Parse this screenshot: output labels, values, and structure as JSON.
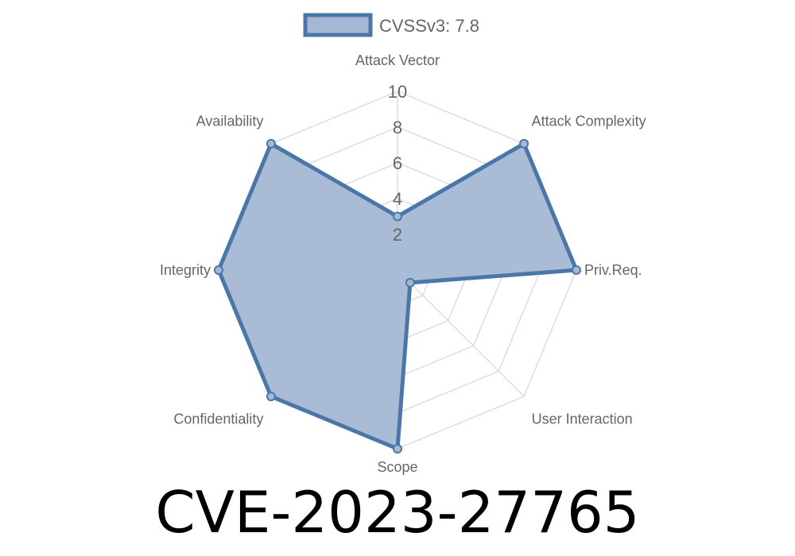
{
  "chart_data": {
    "type": "radar",
    "legend": {
      "label": "CVSSv3: 7.8",
      "position": "top"
    },
    "axes": [
      "Attack Vector",
      "Attack Complexity",
      "Priv.Req.",
      "User Interaction",
      "Scope",
      "Confidentiality",
      "Integrity",
      "Availability"
    ],
    "series": [
      {
        "name": "CVSSv3: 7.8",
        "values": [
          3,
          10,
          10,
          1,
          10,
          10,
          10,
          10
        ]
      }
    ],
    "rlim": [
      0,
      10
    ],
    "ticks": [
      "2",
      "4",
      "6",
      "8",
      "10"
    ],
    "colors": {
      "fill": "#a5b8d3",
      "stroke": "#4a77a8",
      "grid": "#dddddd"
    }
  },
  "title": "CVE-2023-27765"
}
